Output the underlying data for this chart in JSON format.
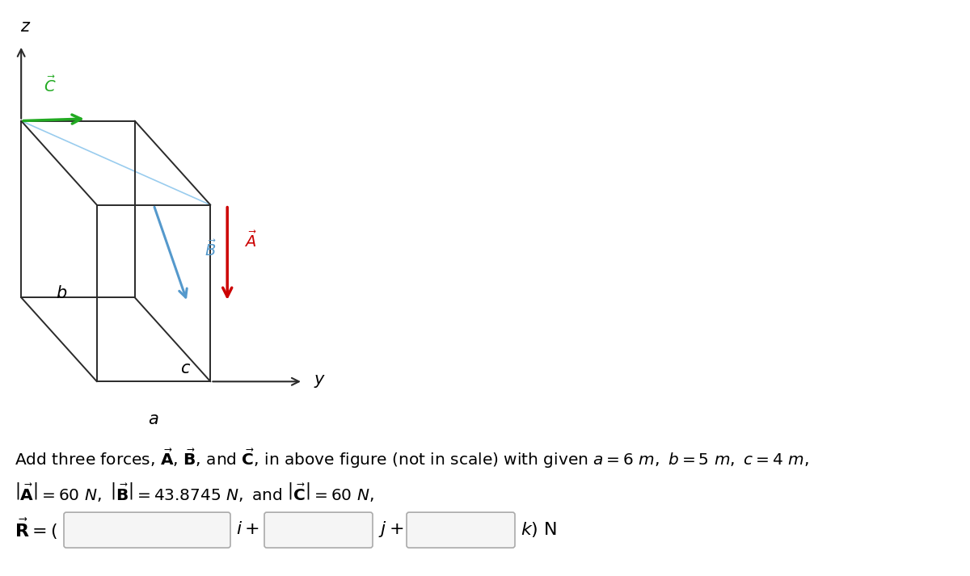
{
  "bg_color": "#ffffff",
  "box_color": "#2a2a2a",
  "axis_color": "#2a2a2a",
  "vec_A_color": "#cc0000",
  "vec_B_color": "#5599cc",
  "vec_C_color": "#22aa22",
  "diag_color": "#99ccee",
  "label_color": "#000000",
  "fig_width": 12.0,
  "fig_height": 7.13,
  "dpi": 100
}
